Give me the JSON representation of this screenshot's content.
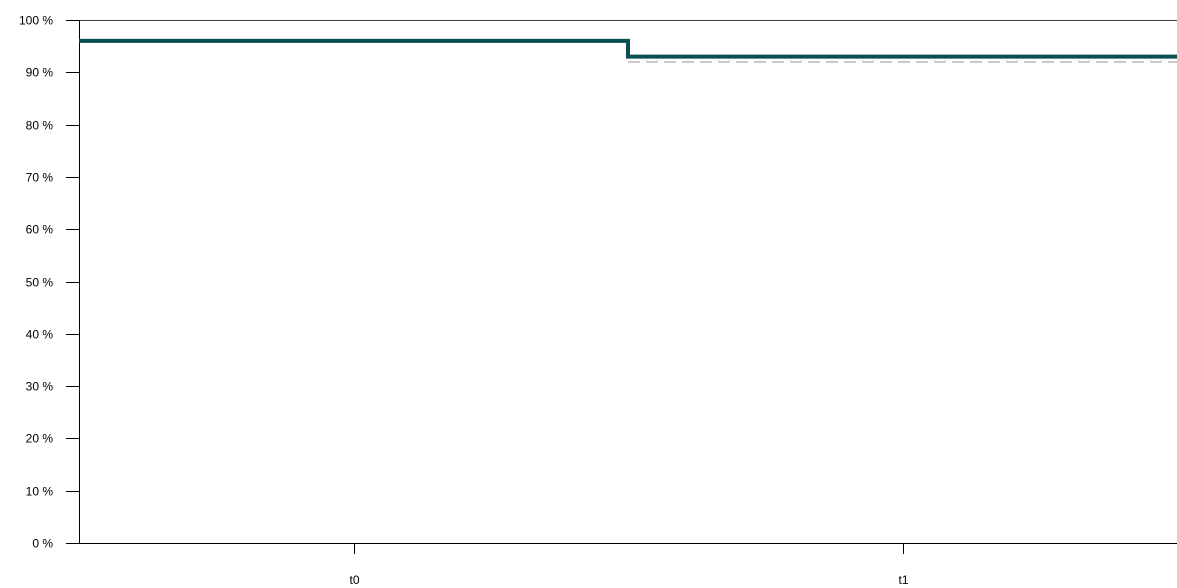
{
  "chart_data": {
    "type": "line",
    "step": true,
    "categories": [
      "t0",
      "t1"
    ],
    "y_tick_labels": [
      "0 %",
      "10 %",
      "20 %",
      "30 %",
      "40 %",
      "50 %",
      "60 %",
      "70 %",
      "80 %",
      "90 %",
      "100 %"
    ],
    "ylim": [
      0,
      100
    ],
    "grid": false,
    "legend": "none",
    "series": [
      {
        "style": "solid",
        "color": "#0b4f52",
        "values": [
          96,
          93
        ]
      },
      {
        "style": "dashed",
        "color": "#c8c8c8",
        "values": [
          null,
          92
        ]
      }
    ]
  }
}
